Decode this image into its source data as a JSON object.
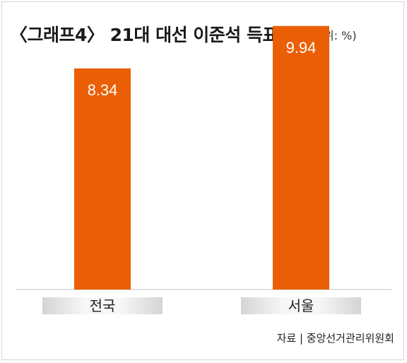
{
  "header": {
    "title": "〈그래프4〉 21대 대선 이준석 득표율",
    "unit": "(단위: %)"
  },
  "colors": {
    "bar": "#ea5f06",
    "label_text": "#ffffff",
    "axis": "#c0c0c0",
    "category_bg_edge": "#d4d4d4",
    "category_bg_center": "#f7f7f7"
  },
  "chart_data": {
    "type": "bar",
    "title": "〈그래프4〉 21대 대선 이준석 득표율",
    "unit": "%",
    "categories": [
      "전국",
      "서울"
    ],
    "values": [
      8.34,
      9.94
    ],
    "ylim": [
      0,
      10.6
    ],
    "grid": false,
    "legend": "none"
  },
  "footer": {
    "source": "자료 | 중앙선거관리위원회"
  }
}
